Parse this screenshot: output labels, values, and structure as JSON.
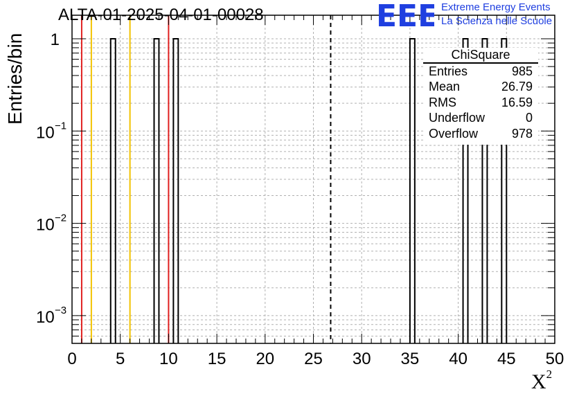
{
  "header": {
    "title": "ALTA-01-2025-04-01-00028",
    "logo_text": "EEE",
    "logo_line1": "Extreme Energy Events",
    "logo_line2": "La Scienza nelle Scuole"
  },
  "stats_box": {
    "title": "ChiSquare",
    "rows": [
      {
        "label": "Entries",
        "value": "985"
      },
      {
        "label": "Mean",
        "value": "26.79"
      },
      {
        "label": "RMS",
        "value": "16.59"
      },
      {
        "label": "Underflow",
        "value": "0"
      },
      {
        "label": "Overflow",
        "value": "978"
      }
    ]
  },
  "chart_data": {
    "type": "bar",
    "xlabel": "X",
    "xlabel_superscript": "2",
    "ylabel": "Entries/bin",
    "xlim": [
      0,
      50
    ],
    "ylim": [
      0.0005,
      1.8
    ],
    "log_y": true,
    "grid": true,
    "x_ticks": [
      0,
      5,
      10,
      15,
      20,
      25,
      30,
      35,
      40,
      45,
      50
    ],
    "y_ticks": [
      {
        "value": 1,
        "base": "1",
        "exp": ""
      },
      {
        "value": 0.1,
        "base": "10",
        "exp": "−1"
      },
      {
        "value": 0.01,
        "base": "10",
        "exp": "−2"
      },
      {
        "value": 0.001,
        "base": "10",
        "exp": "−3"
      }
    ],
    "bin_width": 0.5,
    "bins": [
      {
        "x0": 4.0,
        "value": 1
      },
      {
        "x0": 8.5,
        "value": 1
      },
      {
        "x0": 10.5,
        "value": 1
      },
      {
        "x0": 35.0,
        "value": 1
      },
      {
        "x0": 40.5,
        "value": 1
      },
      {
        "x0": 42.5,
        "value": 1
      },
      {
        "x0": 44.5,
        "value": 1
      }
    ],
    "reference_lines": [
      {
        "x": 1.0,
        "color": "#e02020"
      },
      {
        "x": 2.0,
        "color": "#f2c200"
      },
      {
        "x": 6.0,
        "color": "#f2c200"
      },
      {
        "x": 10.0,
        "color": "#e02020"
      }
    ],
    "mean_line": {
      "x": 26.79,
      "color": "#000000"
    }
  }
}
